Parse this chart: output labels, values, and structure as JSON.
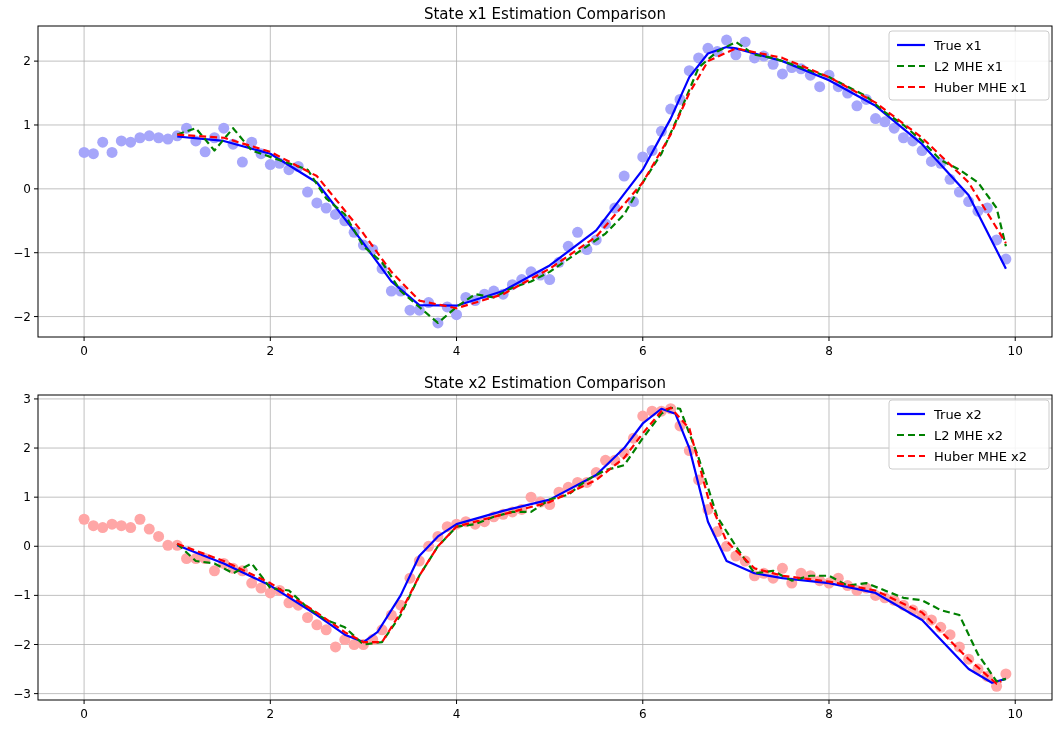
{
  "chart_data": [
    {
      "type": "line",
      "title": "State x1 Estimation Comparison",
      "xlim": [
        -0.495,
        10.395
      ],
      "xticks": [
        0,
        2,
        4,
        6,
        8,
        10
      ],
      "ylim": [
        -2.32,
        2.55
      ],
      "yticks": [
        -2,
        -1,
        0,
        1,
        2
      ],
      "grid": true,
      "legend": "top right",
      "series": [
        {
          "type": "scatter",
          "marker": "circle",
          "color": "#a6a6fa",
          "x": [
            0,
            0.1,
            0.2,
            0.3,
            0.4,
            0.5,
            0.6,
            0.7,
            0.8,
            0.9,
            1.0,
            1.1,
            1.2,
            1.3,
            1.4,
            1.5,
            1.6,
            1.7,
            1.8,
            1.9,
            2.0,
            2.1,
            2.2,
            2.3,
            2.4,
            2.5,
            2.6,
            2.7,
            2.8,
            2.9,
            3.0,
            3.1,
            3.2,
            3.3,
            3.4,
            3.5,
            3.6,
            3.7,
            3.8,
            3.9,
            4.0,
            4.1,
            4.2,
            4.3,
            4.4,
            4.5,
            4.6,
            4.7,
            4.8,
            4.9,
            5.0,
            5.1,
            5.2,
            5.3,
            5.4,
            5.5,
            5.6,
            5.7,
            5.8,
            5.9,
            6.0,
            6.1,
            6.2,
            6.3,
            6.4,
            6.5,
            6.6,
            6.7,
            6.8,
            6.9,
            7.0,
            7.1,
            7.2,
            7.3,
            7.4,
            7.5,
            7.6,
            7.7,
            7.8,
            7.9,
            8.0,
            8.1,
            8.2,
            8.3,
            8.4,
            8.5,
            8.6,
            8.7,
            8.8,
            8.9,
            9.0,
            9.1,
            9.2,
            9.3,
            9.4,
            9.5,
            9.6,
            9.7,
            9.8,
            9.9
          ],
          "values": [
            0.57,
            0.55,
            0.73,
            0.57,
            0.75,
            0.73,
            0.8,
            0.83,
            0.8,
            0.78,
            0.83,
            0.95,
            0.75,
            0.58,
            0.8,
            0.95,
            0.7,
            0.42,
            0.73,
            0.55,
            0.38,
            0.4,
            0.3,
            0.35,
            -0.05,
            -0.22,
            -0.3,
            -0.4,
            -0.5,
            -0.68,
            -0.88,
            -0.95,
            -1.25,
            -1.6,
            -1.6,
            -1.9,
            -1.9,
            -1.78,
            -2.1,
            -1.85,
            -1.97,
            -1.7,
            -1.75,
            -1.65,
            -1.6,
            -1.65,
            -1.5,
            -1.42,
            -1.3,
            -1.35,
            -1.42,
            -1.15,
            -0.9,
            -0.68,
            -0.95,
            -0.8,
            -0.55,
            -0.3,
            0.2,
            -0.2,
            0.5,
            0.6,
            0.9,
            1.25,
            1.4,
            1.85,
            2.05,
            2.2,
            2.15,
            2.33,
            2.1,
            2.3,
            2.05,
            2.08,
            1.95,
            1.8,
            1.9,
            1.88,
            1.78,
            1.6,
            1.78,
            1.6,
            1.5,
            1.3,
            1.4,
            1.1,
            1.05,
            0.95,
            0.8,
            0.75,
            0.6,
            0.43,
            0.4,
            0.15,
            -0.05,
            -0.2,
            -0.35,
            -0.3,
            -0.8,
            -1.1
          ]
        },
        {
          "name": "True x1",
          "color": "#0000ff",
          "line_style": "solid",
          "x": [
            1.0,
            1.5,
            2.0,
            2.5,
            3.0,
            3.3,
            3.6,
            4.0,
            4.5,
            5.0,
            5.5,
            6.0,
            6.3,
            6.5,
            6.7,
            6.9,
            7.0,
            7.5,
            8.0,
            8.5,
            9.0,
            9.5,
            9.9
          ],
          "values": [
            0.82,
            0.75,
            0.55,
            0.1,
            -0.85,
            -1.45,
            -1.82,
            -1.83,
            -1.6,
            -1.2,
            -0.65,
            0.3,
            1.1,
            1.75,
            2.12,
            2.22,
            2.2,
            2.0,
            1.7,
            1.3,
            0.7,
            -0.1,
            -1.25
          ]
        },
        {
          "name": "L2 MHE x1",
          "color": "#008000",
          "line_style": "dashed",
          "x": [
            1.0,
            1.2,
            1.4,
            1.6,
            1.8,
            2.0,
            2.2,
            2.4,
            2.6,
            2.8,
            3.0,
            3.2,
            3.4,
            3.6,
            3.8,
            4.0,
            4.2,
            4.4,
            4.6,
            4.8,
            5.0,
            5.2,
            5.4,
            5.6,
            5.8,
            6.0,
            6.2,
            6.4,
            6.6,
            6.8,
            7.0,
            7.2,
            7.4,
            7.6,
            7.8,
            8.0,
            8.2,
            8.4,
            8.6,
            8.8,
            9.0,
            9.2,
            9.4,
            9.6,
            9.8,
            9.9
          ],
          "values": [
            0.85,
            0.95,
            0.6,
            0.95,
            0.6,
            0.5,
            0.4,
            0.3,
            -0.15,
            -0.4,
            -0.9,
            -1.15,
            -1.6,
            -1.85,
            -2.1,
            -1.85,
            -1.65,
            -1.7,
            -1.55,
            -1.45,
            -1.3,
            -1.1,
            -0.9,
            -0.7,
            -0.4,
            0.1,
            0.55,
            1.2,
            1.9,
            2.15,
            2.3,
            2.1,
            2.05,
            1.95,
            1.85,
            1.75,
            1.6,
            1.45,
            1.2,
            1.0,
            0.75,
            0.45,
            0.3,
            0.1,
            -0.3,
            -0.9
          ]
        },
        {
          "name": "Huber MHE x1",
          "color": "#ff0000",
          "line_style": "dashed",
          "x": [
            1.0,
            1.5,
            2.0,
            2.5,
            3.0,
            3.3,
            3.6,
            4.0,
            4.5,
            5.0,
            5.5,
            6.0,
            6.3,
            6.5,
            6.7,
            7.0,
            7.5,
            8.0,
            8.5,
            9.0,
            9.5,
            9.9
          ],
          "values": [
            0.85,
            0.8,
            0.58,
            0.2,
            -0.7,
            -1.3,
            -1.75,
            -1.87,
            -1.65,
            -1.25,
            -0.75,
            0.1,
            0.85,
            1.5,
            2.0,
            2.2,
            2.05,
            1.75,
            1.35,
            0.8,
            0.1,
            -0.85
          ]
        }
      ]
    },
    {
      "type": "line",
      "title": "State x2 Estimation Comparison",
      "xlim": [
        -0.495,
        10.395
      ],
      "xticks": [
        0,
        2,
        4,
        6,
        8,
        10
      ],
      "ylim": [
        -3.13,
        3.08
      ],
      "yticks": [
        -3,
        -2,
        -1,
        0,
        1,
        2,
        3
      ],
      "grid": true,
      "legend": "top right",
      "series": [
        {
          "type": "scatter",
          "marker": "circle",
          "color": "#ffa6a6",
          "x": [
            0,
            0.1,
            0.2,
            0.3,
            0.4,
            0.5,
            0.6,
            0.7,
            0.8,
            0.9,
            1.0,
            1.1,
            1.2,
            1.3,
            1.4,
            1.5,
            1.6,
            1.7,
            1.8,
            1.9,
            2.0,
            2.1,
            2.2,
            2.3,
            2.4,
            2.5,
            2.6,
            2.7,
            2.8,
            2.9,
            3.0,
            3.1,
            3.2,
            3.3,
            3.4,
            3.5,
            3.6,
            3.7,
            3.8,
            3.9,
            4.0,
            4.1,
            4.2,
            4.3,
            4.4,
            4.5,
            4.6,
            4.7,
            4.8,
            4.9,
            5.0,
            5.1,
            5.2,
            5.3,
            5.4,
            5.5,
            5.6,
            5.7,
            5.8,
            5.9,
            6.0,
            6.1,
            6.2,
            6.3,
            6.4,
            6.5,
            6.6,
            6.7,
            6.8,
            6.9,
            7.0,
            7.1,
            7.2,
            7.3,
            7.4,
            7.5,
            7.6,
            7.7,
            7.8,
            7.9,
            8.0,
            8.1,
            8.2,
            8.3,
            8.4,
            8.5,
            8.6,
            8.7,
            8.8,
            8.9,
            9.0,
            9.1,
            9.2,
            9.3,
            9.4,
            9.5,
            9.6,
            9.7,
            9.8,
            9.9
          ],
          "values": [
            0.55,
            0.42,
            0.38,
            0.45,
            0.42,
            0.38,
            0.55,
            0.35,
            0.2,
            0.02,
            0.02,
            -0.25,
            -0.25,
            -0.25,
            -0.5,
            -0.35,
            -0.45,
            -0.5,
            -0.75,
            -0.85,
            -0.95,
            -0.9,
            -1.15,
            -1.2,
            -1.45,
            -1.6,
            -1.7,
            -2.05,
            -1.9,
            -2.0,
            -2.0,
            -1.9,
            -1.7,
            -1.4,
            -1.2,
            -0.65,
            -0.3,
            0.0,
            0.2,
            0.4,
            0.45,
            0.5,
            0.45,
            0.5,
            0.6,
            0.65,
            0.7,
            0.75,
            1.0,
            0.9,
            0.85,
            1.1,
            1.2,
            1.3,
            1.3,
            1.5,
            1.75,
            1.75,
            1.9,
            2.2,
            2.65,
            2.75,
            2.75,
            2.8,
            2.45,
            1.95,
            1.35,
            0.75,
            0.3,
            0.0,
            -0.2,
            -0.3,
            -0.6,
            -0.55,
            -0.65,
            -0.45,
            -0.75,
            -0.55,
            -0.6,
            -0.7,
            -0.75,
            -0.65,
            -0.8,
            -0.9,
            -0.85,
            -1.0,
            -1.05,
            -1.1,
            -1.2,
            -1.3,
            -1.4,
            -1.5,
            -1.65,
            -1.8,
            -2.05,
            -2.3,
            -2.5,
            -2.65,
            -2.85,
            -2.6
          ]
        },
        {
          "name": "True x2",
          "color": "#0000ff",
          "line_style": "solid",
          "x": [
            1.0,
            1.5,
            2.0,
            2.5,
            2.8,
            3.0,
            3.15,
            3.4,
            3.6,
            3.8,
            4.0,
            4.5,
            5.0,
            5.5,
            5.8,
            6.0,
            6.2,
            6.35,
            6.5,
            6.7,
            6.9,
            7.2,
            7.5,
            8.0,
            8.5,
            9.0,
            9.5,
            9.75,
            9.9
          ],
          "values": [
            0.02,
            -0.35,
            -0.8,
            -1.4,
            -1.8,
            -1.95,
            -1.75,
            -1.0,
            -0.2,
            0.2,
            0.45,
            0.72,
            0.95,
            1.45,
            2.0,
            2.5,
            2.8,
            2.7,
            2.0,
            0.5,
            -0.3,
            -0.55,
            -0.65,
            -0.75,
            -0.95,
            -1.5,
            -2.5,
            -2.78,
            -2.7
          ]
        },
        {
          "name": "L2 MHE x2",
          "color": "#008000",
          "line_style": "dashed",
          "x": [
            1.0,
            1.2,
            1.4,
            1.6,
            1.8,
            2.0,
            2.2,
            2.4,
            2.6,
            2.8,
            3.0,
            3.2,
            3.4,
            3.6,
            3.8,
            4.0,
            4.2,
            4.4,
            4.6,
            4.8,
            5.0,
            5.2,
            5.4,
            5.6,
            5.8,
            6.0,
            6.2,
            6.3,
            6.4,
            6.6,
            6.8,
            7.0,
            7.2,
            7.4,
            7.6,
            7.8,
            8.0,
            8.2,
            8.4,
            8.6,
            8.8,
            9.0,
            9.2,
            9.4,
            9.6,
            9.8,
            9.9
          ],
          "values": [
            0.05,
            -0.3,
            -0.35,
            -0.55,
            -0.35,
            -0.85,
            -0.9,
            -1.25,
            -1.5,
            -1.65,
            -2.0,
            -1.95,
            -1.4,
            -0.6,
            0.0,
            0.4,
            0.45,
            0.6,
            0.7,
            0.7,
            0.95,
            1.05,
            1.35,
            1.55,
            1.65,
            2.2,
            2.7,
            2.82,
            2.8,
            1.8,
            0.6,
            0.0,
            -0.55,
            -0.5,
            -0.7,
            -0.6,
            -0.6,
            -0.8,
            -0.75,
            -0.9,
            -1.05,
            -1.1,
            -1.3,
            -1.4,
            -2.2,
            -2.75,
            -2.7
          ]
        },
        {
          "name": "Huber MHE x2",
          "color": "#ff0000",
          "line_style": "dashed",
          "x": [
            1.0,
            1.5,
            2.0,
            2.5,
            2.8,
            3.0,
            3.2,
            3.4,
            3.6,
            3.8,
            4.0,
            4.5,
            5.0,
            5.5,
            5.8,
            6.0,
            6.2,
            6.3,
            6.5,
            6.7,
            6.9,
            7.2,
            7.5,
            8.0,
            8.5,
            9.0,
            9.5,
            9.8,
            9.85
          ],
          "values": [
            0.05,
            -0.3,
            -0.75,
            -1.35,
            -1.75,
            -1.95,
            -1.95,
            -1.35,
            -0.6,
            0.0,
            0.4,
            0.65,
            0.9,
            1.35,
            1.8,
            2.3,
            2.75,
            2.82,
            2.4,
            1.0,
            0.1,
            -0.45,
            -0.6,
            -0.72,
            -0.9,
            -1.35,
            -2.3,
            -2.8,
            -2.75
          ]
        }
      ]
    }
  ]
}
